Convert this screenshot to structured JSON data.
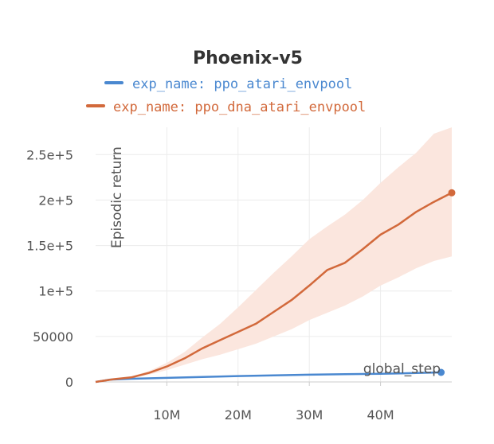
{
  "chart_data": {
    "type": "line",
    "title": "Phoenix-v5",
    "xlabel": "global_step",
    "ylabel": "Episodic return",
    "xlim": [
      0,
      50000000
    ],
    "ylim": [
      0,
      280000
    ],
    "x_ticks": [
      {
        "value": 10000000,
        "label": "10M"
      },
      {
        "value": 20000000,
        "label": "20M"
      },
      {
        "value": 30000000,
        "label": "30M"
      },
      {
        "value": 40000000,
        "label": "40M"
      }
    ],
    "y_ticks": [
      {
        "value": 0,
        "label": "0"
      },
      {
        "value": 50000,
        "label": "50000"
      },
      {
        "value": 100000,
        "label": "1e+5"
      },
      {
        "value": 150000,
        "label": "1.5e+5"
      },
      {
        "value": 200000,
        "label": "2e+5"
      },
      {
        "value": 250000,
        "label": "2.5e+5"
      }
    ],
    "grid": true,
    "legend_position": "top",
    "series": [
      {
        "name": "exp_name: ppo_atari_envpool",
        "color": "#4a88d0",
        "x": [
          0,
          2000000,
          5000000,
          10000000,
          15000000,
          20000000,
          25000000,
          30000000,
          35000000,
          40000000,
          45000000,
          48500000
        ],
        "y": [
          0,
          2500,
          3500,
          4500,
          5500,
          6500,
          7200,
          8000,
          8500,
          9000,
          9800,
          10500
        ]
      },
      {
        "name": "exp_name: ppo_dna_atari_envpool",
        "color": "#d2693b",
        "band_color": "#fbe6de",
        "x": [
          0,
          2500000,
          5000000,
          7500000,
          10000000,
          12500000,
          15000000,
          17500000,
          20000000,
          22500000,
          25000000,
          27500000,
          30000000,
          32500000,
          35000000,
          37500000,
          40000000,
          42500000,
          45000000,
          47500000,
          50000000
        ],
        "y": [
          0,
          3000,
          5000,
          10000,
          17000,
          26000,
          37000,
          46000,
          55000,
          64000,
          77000,
          90000,
          106000,
          123000,
          131000,
          146000,
          162000,
          173000,
          187000,
          198000,
          208000
        ],
        "lower": [
          0,
          2500,
          4200,
          8000,
          13000,
          19000,
          25000,
          30000,
          36000,
          42000,
          50000,
          58000,
          68000,
          76000,
          84000,
          94000,
          106000,
          115000,
          125000,
          133000,
          138000
        ],
        "upper": [
          0,
          3500,
          6000,
          12000,
          21000,
          33000,
          49000,
          64000,
          82000,
          101000,
          120000,
          138000,
          157000,
          171000,
          184000,
          200000,
          219000,
          236000,
          252000,
          273000,
          280000
        ]
      }
    ]
  }
}
